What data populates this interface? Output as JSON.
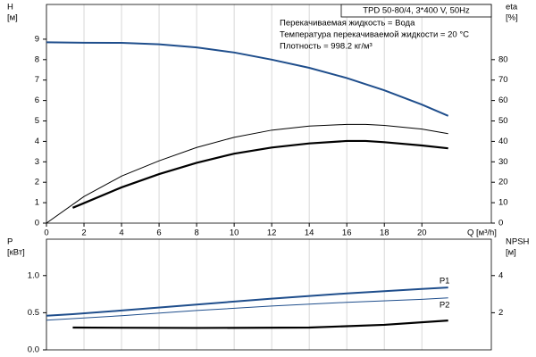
{
  "chart_data": [
    {
      "type": "line",
      "title": "TPD 50-80/4, 3*400 V, 50Hz",
      "annotations": [
        "Перекачиваемая жидкость = Вода",
        "Температура перекачиваемой жидкости = 20 °C",
        "Плотность = 998.2 кг/м³"
      ],
      "ylabel": [
        "H",
        "[м]"
      ],
      "y2label": [
        "eta",
        "[%]"
      ],
      "xlabel": "Q [м³/h]",
      "xlim": [
        0,
        23.7
      ],
      "xticks": [
        0,
        2,
        4,
        6,
        8,
        10,
        12,
        14,
        16,
        18,
        20
      ],
      "ylim": [
        0,
        10.7
      ],
      "yticks": [
        0,
        1,
        2,
        3,
        4,
        5,
        6,
        7,
        8,
        9
      ],
      "y2lim": [
        0,
        107
      ],
      "y2ticks": [
        0,
        10,
        20,
        30,
        40,
        50,
        60,
        70,
        80
      ],
      "grid": true,
      "series": [
        {
          "color": "#1f4e8c",
          "width": 2,
          "x": [
            0,
            2,
            4,
            6,
            8,
            10,
            12,
            14,
            16,
            18,
            20,
            21.4
          ],
          "values": [
            8.85,
            8.83,
            8.82,
            8.75,
            8.6,
            8.35,
            8.0,
            7.6,
            7.1,
            6.5,
            5.8,
            5.25
          ]
        },
        {
          "color": "#000000",
          "width": 1,
          "axis": "y2",
          "x": [
            0,
            2,
            4,
            6,
            8,
            10,
            12,
            14,
            16,
            17,
            18,
            20,
            21.4
          ],
          "values": [
            0,
            13,
            23,
            30.5,
            37,
            42,
            45.5,
            47.5,
            48.3,
            48.3,
            47.8,
            46,
            43.8
          ]
        },
        {
          "color": "#000000",
          "width": 2.2,
          "axis": "y2",
          "x": [
            1.4,
            2,
            4,
            6,
            8,
            10,
            12,
            14,
            16,
            17,
            18,
            20,
            21.4
          ],
          "values": [
            7.5,
            9.8,
            17.5,
            24,
            29.5,
            34,
            37,
            39,
            40.2,
            40.2,
            39.6,
            38,
            36.6
          ]
        }
      ]
    },
    {
      "type": "line",
      "ylabel": [
        "P",
        "[кВт]"
      ],
      "y2label": [
        "NPSH",
        "[м]"
      ],
      "xlim": [
        0,
        23.7
      ],
      "xticks": [
        0,
        2,
        4,
        6,
        8,
        10,
        12,
        14,
        16,
        18,
        20
      ],
      "ylim": [
        0,
        1.49
      ],
      "yticks": [
        {
          "value": 0,
          "label": "0.0"
        },
        0.5,
        {
          "value": 1,
          "label": "1.0"
        }
      ],
      "y2lim": [
        0,
        5.96
      ],
      "y2ticks": [
        2,
        4
      ],
      "grid": true,
      "series": [
        {
          "name": "P1",
          "color": "#1f4e8c",
          "width": 2,
          "x": [
            0,
            1.4,
            4,
            8,
            12,
            16,
            20,
            21.4
          ],
          "values": [
            0.46,
            0.48,
            0.53,
            0.61,
            0.69,
            0.76,
            0.82,
            0.84
          ]
        },
        {
          "name": "P2",
          "color": "#1f4e8c",
          "width": 1,
          "x": [
            0,
            4,
            8,
            12,
            16,
            20,
            21.4
          ],
          "values": [
            0.4,
            0.46,
            0.53,
            0.59,
            0.64,
            0.68,
            0.7
          ]
        },
        {
          "color": "#000000",
          "width": 2.2,
          "axis": "y2",
          "x": [
            1.4,
            8,
            14,
            18,
            21.4
          ],
          "values": [
            1.2,
            1.18,
            1.2,
            1.35,
            1.58
          ]
        }
      ]
    }
  ]
}
